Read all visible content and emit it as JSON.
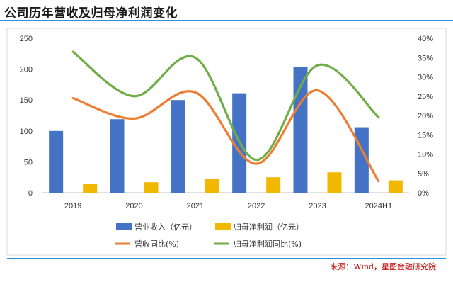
{
  "title": "公司历年营收及归母净利润变化",
  "source": "来源：Wind，星图金融研究院",
  "chart_data": {
    "type": "bar",
    "categories": [
      "2019",
      "2020",
      "2021",
      "2022",
      "2023",
      "2024H1"
    ],
    "series": [
      {
        "name": "营业收入（亿元）",
        "kind": "bar",
        "axis": "left",
        "color": "#4472c4",
        "values": [
          100,
          119,
          150,
          161,
          204,
          106
        ]
      },
      {
        "name": "归母净利润（亿元）",
        "kind": "bar",
        "axis": "left",
        "color": "#f2b800",
        "values": [
          14,
          17,
          23,
          25,
          33,
          20
        ]
      },
      {
        "name": "营收同比(%)",
        "kind": "line",
        "axis": "right",
        "color": "#ed7d31",
        "values": [
          24.5,
          19.2,
          26.0,
          7.5,
          26.5,
          3.0
        ]
      },
      {
        "name": "归母净利润同比(%)",
        "kind": "line",
        "axis": "right",
        "color": "#70ad47",
        "values": [
          36.5,
          25.0,
          35.0,
          8.5,
          33.0,
          19.5
        ]
      }
    ],
    "ylim_left": [
      0,
      250
    ],
    "yticks_left": [
      "0",
      "50",
      "100",
      "150",
      "200",
      "250"
    ],
    "ylim_right": [
      0,
      40
    ],
    "yticks_right": [
      "0%",
      "5%",
      "10%",
      "15%",
      "20%",
      "25%",
      "30%",
      "35%",
      "40%"
    ],
    "legend_position": "bottom"
  }
}
